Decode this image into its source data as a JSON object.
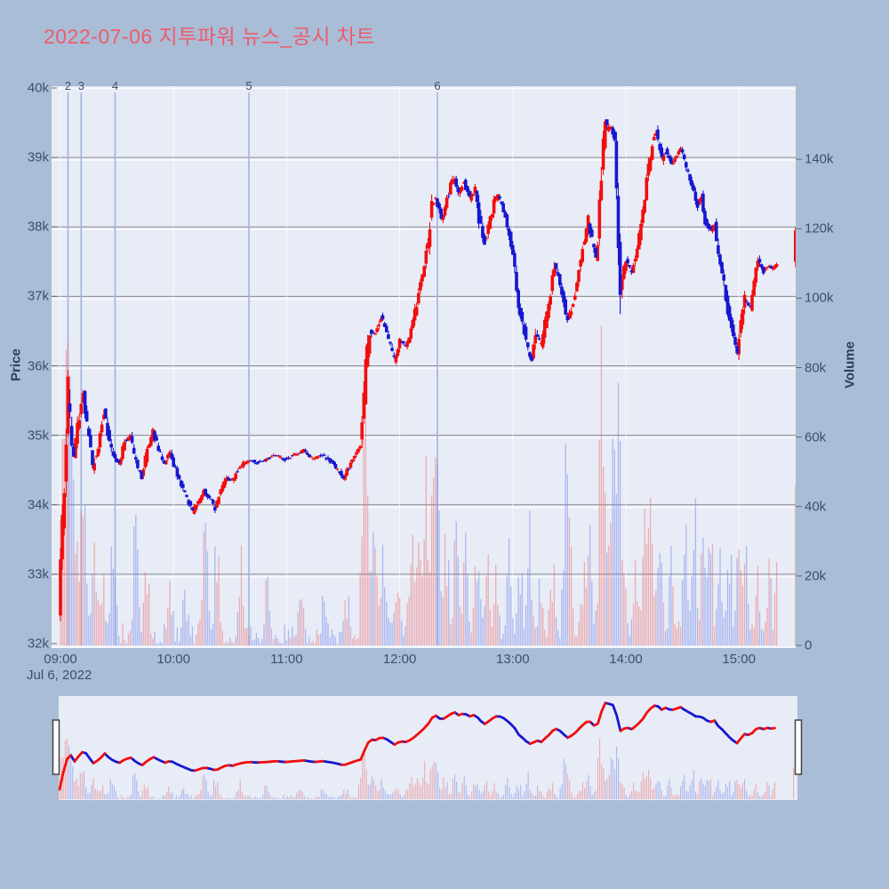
{
  "title": {
    "text": "2022-07-06 지투파워 뉴스_공시 차트",
    "color": "#ed5c6b"
  },
  "colors": {
    "paper_bg": "#a9bdd7",
    "plot_bg": "#e8ecf6",
    "grid_dark": "#85888f",
    "grid_white": "#fbfcfe",
    "hour_line": "rgba(255,255,255,0.65)",
    "tick_text": "#3d4f6d",
    "axis_title_text": "#2a3f5f",
    "annotation_line": "#9fb4e0",
    "annotation_text": "#3d4f6d",
    "candle_up": "#f20d0d",
    "candle_down": "#1717cf",
    "volume_up": "rgba(238,110,112,0.5)",
    "volume_down": "rgba(122,140,233,0.55)",
    "slider_handle_fill": "#ffffff",
    "slider_handle_border": "#444444",
    "tick_mark": "#666a73"
  },
  "price_axis": {
    "title": "Price",
    "tick_labels": [
      "32k",
      "33k",
      "34k",
      "35k",
      "36k",
      "37k",
      "38k",
      "39k",
      "40k"
    ],
    "range_k": [
      32,
      40
    ]
  },
  "volume_axis": {
    "title": "Volume",
    "tick_labels": [
      "0",
      "20k",
      "40k",
      "60k",
      "80k",
      "100k",
      "120k",
      "140k"
    ],
    "range_k": [
      0,
      160
    ]
  },
  "x_axis": {
    "tick_labels": [
      "09:00",
      "10:00",
      "11:00",
      "12:00",
      "13:00",
      "14:00",
      "15:00"
    ],
    "date_label": "Jul 6, 2022"
  },
  "annotations": {
    "labels": [
      "2",
      "3",
      "4",
      "5",
      "6"
    ],
    "times_min": [
      4,
      11,
      29,
      100,
      200
    ]
  },
  "chart_data": {
    "type": "candlestick+volume",
    "x_unit": "minutes since 09:00",
    "price_unit": "KRW thousands",
    "volume_unit": "shares (k), right axis",
    "session_min": [
      0,
      381
    ],
    "price_path_anchors": [
      [
        0,
        32.4
      ],
      [
        1,
        33.2
      ],
      [
        2,
        33.8
      ],
      [
        3,
        34.3
      ],
      [
        4,
        34.9
      ],
      [
        5,
        35.6
      ],
      [
        6,
        35.2
      ],
      [
        7,
        34.85
      ],
      [
        8,
        34.7
      ],
      [
        9,
        34.9
      ],
      [
        11,
        35.3
      ],
      [
        13,
        35.6
      ],
      [
        15,
        35.15
      ],
      [
        18,
        34.55
      ],
      [
        21,
        34.85
      ],
      [
        24,
        35.35
      ],
      [
        26,
        35.05
      ],
      [
        29,
        34.7
      ],
      [
        32,
        34.6
      ],
      [
        35,
        34.9
      ],
      [
        38,
        35.0
      ],
      [
        41,
        34.6
      ],
      [
        44,
        34.4
      ],
      [
        47,
        34.8
      ],
      [
        50,
        35.05
      ],
      [
        53,
        34.8
      ],
      [
        56,
        34.6
      ],
      [
        59,
        34.75
      ],
      [
        62,
        34.5
      ],
      [
        65,
        34.3
      ],
      [
        68,
        34.1
      ],
      [
        71,
        33.9
      ],
      [
        74,
        34.05
      ],
      [
        77,
        34.2
      ],
      [
        80,
        34.1
      ],
      [
        83,
        33.95
      ],
      [
        86,
        34.2
      ],
      [
        89,
        34.4
      ],
      [
        92,
        34.35
      ],
      [
        95,
        34.5
      ],
      [
        98,
        34.6
      ],
      [
        101,
        34.65
      ],
      [
        105,
        34.6
      ],
      [
        110,
        34.65
      ],
      [
        115,
        34.72
      ],
      [
        120,
        34.65
      ],
      [
        125,
        34.72
      ],
      [
        130,
        34.78
      ],
      [
        135,
        34.65
      ],
      [
        140,
        34.72
      ],
      [
        145,
        34.6
      ],
      [
        148,
        34.5
      ],
      [
        151,
        34.38
      ],
      [
        154,
        34.55
      ],
      [
        157,
        34.72
      ],
      [
        160,
        34.85
      ],
      [
        161,
        35.2
      ],
      [
        163,
        36.0
      ],
      [
        165,
        36.5
      ],
      [
        168,
        36.45
      ],
      [
        171,
        36.7
      ],
      [
        174,
        36.5
      ],
      [
        178,
        36.08
      ],
      [
        181,
        36.35
      ],
      [
        184,
        36.3
      ],
      [
        187,
        36.5
      ],
      [
        190,
        36.9
      ],
      [
        193,
        37.3
      ],
      [
        196,
        37.8
      ],
      [
        198,
        38.3
      ],
      [
        200,
        38.45
      ],
      [
        203,
        38.1
      ],
      [
        205,
        38.3
      ],
      [
        208,
        38.6
      ],
      [
        210,
        38.72
      ],
      [
        212,
        38.5
      ],
      [
        215,
        38.65
      ],
      [
        218,
        38.4
      ],
      [
        221,
        38.55
      ],
      [
        223,
        38.1
      ],
      [
        226,
        37.78
      ],
      [
        229,
        38.1
      ],
      [
        231,
        38.35
      ],
      [
        233,
        38.45
      ],
      [
        236,
        38.25
      ],
      [
        239,
        37.9
      ],
      [
        242,
        37.4
      ],
      [
        244,
        36.9
      ],
      [
        247,
        36.5
      ],
      [
        249,
        36.2
      ],
      [
        251,
        36.1
      ],
      [
        253,
        36.45
      ],
      [
        256,
        36.3
      ],
      [
        258,
        36.6
      ],
      [
        261,
        37.0
      ],
      [
        263,
        37.45
      ],
      [
        266,
        37.2
      ],
      [
        268,
        36.9
      ],
      [
        270,
        36.65
      ],
      [
        273,
        36.9
      ],
      [
        275,
        37.2
      ],
      [
        277,
        37.55
      ],
      [
        280,
        37.95
      ],
      [
        281,
        38.1
      ],
      [
        283,
        37.8
      ],
      [
        285,
        37.5
      ],
      [
        286,
        37.8
      ],
      [
        288,
        38.8
      ],
      [
        290,
        39.5
      ],
      [
        291,
        39.4
      ],
      [
        293,
        39.45
      ],
      [
        295,
        39.2
      ],
      [
        296,
        38.5
      ],
      [
        298,
        37.2
      ],
      [
        301,
        37.5
      ],
      [
        304,
        37.35
      ],
      [
        307,
        37.7
      ],
      [
        310,
        38.2
      ],
      [
        312,
        38.7
      ],
      [
        315,
        39.2
      ],
      [
        317,
        39.35
      ],
      [
        320,
        38.95
      ],
      [
        322,
        39.1
      ],
      [
        325,
        38.9
      ],
      [
        328,
        39.05
      ],
      [
        330,
        39.15
      ],
      [
        333,
        38.85
      ],
      [
        336,
        38.6
      ],
      [
        339,
        38.3
      ],
      [
        341,
        38.45
      ],
      [
        343,
        38.1
      ],
      [
        346,
        37.95
      ],
      [
        348,
        38.05
      ],
      [
        350,
        37.6
      ],
      [
        353,
        37.2
      ],
      [
        355,
        36.8
      ],
      [
        358,
        36.4
      ],
      [
        360,
        36.2
      ],
      [
        362,
        36.6
      ],
      [
        364,
        36.95
      ],
      [
        367,
        36.85
      ],
      [
        369,
        37.2
      ],
      [
        371,
        37.5
      ],
      [
        374,
        37.35
      ],
      [
        376,
        37.45
      ],
      [
        378,
        37.4
      ],
      [
        381,
        37.45
      ]
    ],
    "closing_auction": {
      "time_min": 390,
      "open_k": 37.5,
      "close_k": 37.95,
      "high_k": 38.0,
      "low_k": 37.42,
      "volume_k": 46
    },
    "volume_base_k": [
      0.5,
      6.5
    ],
    "volume_spikes_k": [
      [
        1,
        60
      ],
      [
        3,
        85
      ],
      [
        5,
        70
      ],
      [
        7,
        50
      ],
      [
        10,
        40
      ],
      [
        13,
        35
      ],
      [
        18,
        30
      ],
      [
        22,
        28
      ],
      [
        28,
        40
      ],
      [
        40,
        42
      ],
      [
        46,
        30
      ],
      [
        58,
        25
      ],
      [
        66,
        28
      ],
      [
        77,
        60
      ],
      [
        83,
        45
      ],
      [
        96,
        30
      ],
      [
        110,
        20
      ],
      [
        127,
        28
      ],
      [
        140,
        22
      ],
      [
        152,
        18
      ],
      [
        161,
        72
      ],
      [
        163,
        65
      ],
      [
        167,
        45
      ],
      [
        172,
        35
      ],
      [
        179,
        25
      ],
      [
        186,
        40
      ],
      [
        190,
        45
      ],
      [
        194,
        58
      ],
      [
        198,
        52
      ],
      [
        200,
        60
      ],
      [
        205,
        40
      ],
      [
        210,
        35
      ],
      [
        215,
        30
      ],
      [
        221,
        38
      ],
      [
        226,
        30
      ],
      [
        231,
        25
      ],
      [
        238,
        28
      ],
      [
        244,
        30
      ],
      [
        249,
        42
      ],
      [
        255,
        25
      ],
      [
        261,
        30
      ],
      [
        268,
        55
      ],
      [
        270,
        35
      ],
      [
        277,
        30
      ],
      [
        281,
        35
      ],
      [
        287,
        88
      ],
      [
        289,
        70
      ],
      [
        293,
        60
      ],
      [
        296,
        82
      ],
      [
        299,
        45
      ],
      [
        305,
        30
      ],
      [
        310,
        35
      ],
      [
        313,
        62
      ],
      [
        318,
        40
      ],
      [
        324,
        30
      ],
      [
        331,
        45
      ],
      [
        336,
        58
      ],
      [
        341,
        46
      ],
      [
        345,
        35
      ],
      [
        350,
        30
      ],
      [
        355,
        36
      ],
      [
        360,
        33
      ],
      [
        364,
        30
      ],
      [
        370,
        40
      ],
      [
        376,
        25
      ],
      [
        381,
        45
      ]
    ]
  },
  "rangeslider": {
    "shows_full_session": true
  }
}
